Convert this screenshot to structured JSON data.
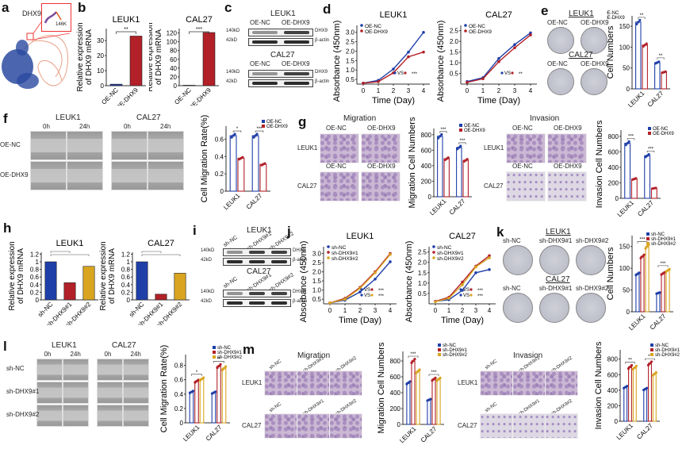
{
  "panels": {
    "a": {
      "label": "a",
      "title": "DHX9",
      "site_label": "146K"
    },
    "b": {
      "label": "b"
    },
    "c": {
      "label": "c",
      "blots": [
        {
          "cell": "LEUK1",
          "lanes": [
            "OE-NC",
            "OE-DHX9"
          ],
          "markers": [
            "140kD",
            "42kD"
          ],
          "proteins": [
            "DHX9",
            "β-actin"
          ]
        },
        {
          "cell": "CAL27",
          "lanes": [
            "OE-NC",
            "OE-DHX9"
          ],
          "markers": [
            "140kD",
            "42kD"
          ],
          "proteins": [
            "DHX9",
            "β-actin"
          ]
        }
      ]
    },
    "d": {
      "label": "d"
    },
    "e": {
      "label": "e",
      "dish_groups": [
        {
          "cell": "LEUK1",
          "lanes": [
            "OE-NC",
            "OE-DHX9"
          ]
        },
        {
          "cell": "CAL27",
          "lanes": [
            "OE-NC",
            "OE-DHX9"
          ]
        }
      ]
    },
    "f": {
      "label": "f",
      "cells": [
        "LEUK1",
        "CAL27"
      ],
      "times": [
        "0h",
        "24h"
      ],
      "rows": [
        "OE-NC",
        "OE-DHX9"
      ]
    },
    "g": {
      "label": "g",
      "sections": [
        {
          "title": "Migration",
          "rows": [
            "LEUK1",
            "CAL27"
          ],
          "cols": [
            "OE-NC",
            "OE-DHX9"
          ]
        },
        {
          "title": "Invasion",
          "rows": [
            "LEUK1",
            "CAL27"
          ],
          "cols": [
            "OE-NC",
            "OE-DHX9"
          ]
        }
      ]
    },
    "h": {
      "label": "h"
    },
    "i": {
      "label": "i",
      "blots": [
        {
          "cell": "LEUK1",
          "lanes": [
            "sh-NC",
            "sh-DHX9#1",
            "sh-DHX9#2"
          ],
          "markers": [
            "140kD",
            "42kD"
          ],
          "proteins": [
            "DHX9",
            "β-actin"
          ]
        },
        {
          "cell": "CAL27",
          "lanes": [
            "sh-NC",
            "sh-DHX9#1",
            "sh-DHX9#2"
          ],
          "markers": [
            "140kD",
            "42kD"
          ],
          "proteins": [
            "DHX9",
            "β-actin"
          ]
        }
      ]
    },
    "j": {
      "label": "j"
    },
    "k": {
      "label": "k",
      "dish_groups": [
        {
          "cell": "LEUK1",
          "lanes": [
            "sh-NC",
            "sh-DHX9#1",
            "sh-DHX9#2"
          ]
        },
        {
          "cell": "CAL27",
          "lanes": [
            "sh-NC",
            "sh-DHX9#1",
            "sh-DHX9#2"
          ]
        }
      ]
    },
    "l": {
      "label": "l",
      "cells": [
        "LEUK1",
        "CAL27"
      ],
      "times": [
        "0h",
        "24h"
      ],
      "rows": [
        "sh-NC",
        "sh-DHX9#1",
        "sh-DHX9#2"
      ]
    },
    "m": {
      "label": "m",
      "sections": [
        {
          "title": "Migration",
          "rows": [
            "LEUK1",
            "CAL27"
          ],
          "cols": [
            "sh-NC",
            "sh-DHX9#1",
            "sh-DHX9#2"
          ]
        },
        {
          "title": "Invasion",
          "rows": [
            "LEUK1",
            "CAL27"
          ],
          "cols": [
            "sh-NC",
            "sh-DHX9#1",
            "sh-DHX9#2"
          ]
        }
      ]
    }
  },
  "colors": {
    "nc": "#1f3fa8",
    "oe": "#b22028",
    "sh1": "#b22028",
    "sh2": "#d9a520"
  },
  "chart_data": [
    {
      "id": "b1",
      "type": "bar",
      "title": "LEUK1",
      "ylabel": "Relative expression of DHX9 mRNA",
      "categories": [
        "OE-NC",
        "OE-DHX9"
      ],
      "values": [
        1,
        33
      ],
      "ylim": [
        0,
        38
      ],
      "yticks": [
        0,
        10,
        20,
        30
      ],
      "sig": "**"
    },
    {
      "id": "b2",
      "type": "bar",
      "title": "CAL27",
      "ylabel": "Relative expression of DHX9 mRNA",
      "categories": [
        "OE-NC",
        "OE-DHX9"
      ],
      "values": [
        1,
        121
      ],
      "ylim": [
        0,
        130
      ],
      "yticks": [
        0,
        20,
        40,
        60,
        80,
        100,
        120
      ],
      "sig": "***"
    },
    {
      "id": "d1",
      "type": "line",
      "title": "LEUK1",
      "xlabel": "Time (Day)",
      "ylabel": "Absorbance (450nm)",
      "x": [
        0,
        1,
        2,
        3,
        4
      ],
      "ylim": [
        0.25,
        3.2
      ],
      "yticks": [
        0.5,
        1.0,
        1.5,
        2.0,
        2.5,
        3.0
      ],
      "series": [
        {
          "name": "OE-NC",
          "values": [
            0.3,
            0.45,
            1.05,
            1.95,
            3.0
          ]
        },
        {
          "name": "OE-DHX9",
          "values": [
            0.3,
            0.38,
            0.85,
            1.7,
            1.95
          ]
        }
      ],
      "annotation": "VS ***"
    },
    {
      "id": "d2",
      "type": "line",
      "title": "CAL27",
      "xlabel": "Time (Day)",
      "ylabel": "Absorbance (450nm)",
      "x": [
        0,
        1,
        2,
        3,
        4
      ],
      "ylim": [
        0.0,
        2.6
      ],
      "yticks": [
        0.5,
        1.0,
        1.5,
        2.0,
        2.5
      ],
      "series": [
        {
          "name": "OE-NC",
          "values": [
            0.12,
            0.3,
            1.2,
            1.85,
            2.4
          ]
        },
        {
          "name": "OE-DHX9",
          "values": [
            0.08,
            0.25,
            1.05,
            1.7,
            2.3
          ]
        }
      ],
      "annotation": "VS **"
    },
    {
      "id": "e",
      "type": "bar",
      "ylabel": "Cell Numbers",
      "categories": [
        "LEUK1",
        "CAL27"
      ],
      "ylim": [
        0,
        175
      ],
      "yticks": [
        0,
        50,
        100,
        150
      ],
      "series": [
        {
          "name": "OE-NC",
          "values": [
            160,
            63
          ]
        },
        {
          "name": "OE-DHX9",
          "values": [
            105,
            40
          ]
        }
      ],
      "sig": [
        "**",
        "**"
      ]
    },
    {
      "id": "f",
      "type": "bar",
      "ylabel": "Cell Migration Rate(%)",
      "categories": [
        "LEUK1",
        "CAL27"
      ],
      "ylim": [
        0,
        0.75
      ],
      "yticks": [
        0.0,
        0.2,
        0.4,
        0.6
      ],
      "series": [
        {
          "name": "OE-NC",
          "values": [
            0.64,
            0.64
          ]
        },
        {
          "name": "OE-DHX9",
          "values": [
            0.38,
            0.31
          ]
        }
      ],
      "sig": [
        "*",
        "***"
      ]
    },
    {
      "id": "g1",
      "type": "bar",
      "ylabel": "Migration Cell Numbers",
      "categories": [
        "LEUK1",
        "CAL27"
      ],
      "ylim": [
        0,
        880
      ],
      "yticks": [
        0,
        200,
        400,
        600,
        800
      ],
      "series": [
        {
          "name": "OE-NC",
          "values": [
            780,
            635
          ]
        },
        {
          "name": "OE-DHX9",
          "values": [
            490,
            470
          ]
        }
      ],
      "sig": [
        "***",
        "***"
      ]
    },
    {
      "id": "g2",
      "type": "bar",
      "ylabel": "Invasion Cell Numbers",
      "categories": [
        "LEUK1",
        "CAL27"
      ],
      "ylim": [
        0,
        880
      ],
      "yticks": [
        0,
        200,
        400,
        600,
        800
      ],
      "series": [
        {
          "name": "OE-NC",
          "values": [
            710,
            550
          ]
        },
        {
          "name": "OE-DHX9",
          "values": [
            250,
            130
          ]
        }
      ],
      "sig": [
        "***",
        "***"
      ]
    },
    {
      "id": "h1",
      "type": "bar",
      "title": "LEUK1",
      "ylabel": "Relative expression of DHX9 mRNA",
      "categories": [
        "sh-NC",
        "sh-DHX9#1",
        "sh-DHX9#2"
      ],
      "values": [
        1.0,
        0.45,
        0.88
      ],
      "ylim": [
        0,
        1.25
      ],
      "yticks": [
        0.0,
        0.2,
        0.4,
        0.6,
        0.8,
        1.0,
        1.2
      ]
    },
    {
      "id": "h2",
      "type": "bar",
      "title": "CAL27",
      "ylabel": "Relative expression of DHX9 mRNA",
      "categories": [
        "sh-NC",
        "sh-DHX9#1",
        "sh-DHX9#2"
      ],
      "values": [
        1.0,
        0.15,
        0.7
      ],
      "ylim": [
        0,
        1.25
      ],
      "yticks": [
        0.0,
        0.2,
        0.4,
        0.6,
        0.8,
        1.0,
        1.2
      ]
    },
    {
      "id": "j1",
      "type": "line",
      "title": "LEUK1",
      "xlabel": "Time (Day)",
      "ylabel": "Absorbance (450nm)",
      "x": [
        0,
        1,
        2,
        3,
        4
      ],
      "ylim": [
        0.25,
        3.2
      ],
      "yticks": [
        0.5,
        1.0,
        1.5,
        2.0,
        2.5,
        3.0
      ],
      "series": [
        {
          "name": "sh-NC",
          "values": [
            0.3,
            0.45,
            0.9,
            1.6,
            2.55
          ]
        },
        {
          "name": "sh-DHX9#1",
          "values": [
            0.3,
            0.55,
            1.15,
            2.0,
            3.0
          ]
        },
        {
          "name": "sh-DHX9#2",
          "values": [
            0.3,
            0.5,
            1.1,
            1.95,
            2.95
          ]
        }
      ],
      "annotation": "VS ***"
    },
    {
      "id": "j2",
      "type": "line",
      "title": "CAL27",
      "xlabel": "Time (Day)",
      "ylabel": "Absorbance (450nm)",
      "x": [
        0,
        1,
        2,
        3,
        4
      ],
      "ylim": [
        0.0,
        2.6
      ],
      "yticks": [
        0.5,
        1.0,
        1.5,
        2.0,
        2.5
      ],
      "series": [
        {
          "name": "sh-NC",
          "values": [
            0.12,
            0.2,
            0.65,
            1.5,
            1.65
          ]
        },
        {
          "name": "sh-DHX9#1",
          "values": [
            0.12,
            0.32,
            1.05,
            1.82,
            2.32
          ]
        },
        {
          "name": "sh-DHX9#2",
          "values": [
            0.1,
            0.27,
            0.92,
            1.78,
            2.22
          ]
        }
      ],
      "annotation": "VS ***"
    },
    {
      "id": "k",
      "type": "bar",
      "ylabel": "Cell Numbers",
      "categories": [
        "LEUK1",
        "CAL27"
      ],
      "ylim": [
        0,
        175
      ],
      "yticks": [
        0,
        50,
        100,
        150
      ],
      "series": [
        {
          "name": "sh-NC",
          "values": [
            87,
            43
          ]
        },
        {
          "name": "sh-DHX9#1",
          "values": [
            127,
            88
          ]
        },
        {
          "name": "sh-DHX9#2",
          "values": [
            150,
            95
          ]
        }
      ],
      "sig": [
        "***",
        "***"
      ]
    },
    {
      "id": "l",
      "type": "bar",
      "ylabel": "Cell Migration Rate(%)",
      "categories": [
        "LEUK1",
        "CAL27"
      ],
      "ylim": [
        0,
        0.95
      ],
      "yticks": [
        0.0,
        0.2,
        0.4,
        0.6,
        0.8
      ],
      "series": [
        {
          "name": "sh-NC",
          "values": [
            0.43,
            0.42
          ]
        },
        {
          "name": "sh-DHX9#1",
          "values": [
            0.58,
            0.79
          ]
        },
        {
          "name": "sh-DHX9#2",
          "values": [
            0.61,
            0.76
          ]
        }
      ],
      "sig": [
        "*",
        "**"
      ]
    },
    {
      "id": "m1",
      "type": "bar",
      "ylabel": "Migration Cell Numbers",
      "categories": [
        "LEUK1",
        "CAL27"
      ],
      "ylim": [
        0,
        920
      ],
      "yticks": [
        0,
        200,
        400,
        600,
        800
      ],
      "series": [
        {
          "name": "sh-NC",
          "values": [
            525,
            310
          ]
        },
        {
          "name": "sh-DHX9#1",
          "values": [
            800,
            570
          ]
        },
        {
          "name": "sh-DHX9#2",
          "values": [
            670,
            570
          ]
        }
      ],
      "sig": [
        "***",
        "***"
      ]
    },
    {
      "id": "m2",
      "type": "bar",
      "ylabel": "Invasion Cell Numbers",
      "categories": [
        "LEUK1",
        "CAL27"
      ],
      "ylim": [
        0,
        920
      ],
      "yticks": [
        0,
        200,
        400,
        600,
        800
      ],
      "series": [
        {
          "name": "sh-NC",
          "values": [
            440,
            415
          ]
        },
        {
          "name": "sh-DHX9#1",
          "values": [
            700,
            745
          ]
        },
        {
          "name": "sh-DHX9#2",
          "values": [
            690,
            610
          ]
        }
      ],
      "sig": [
        "**",
        "**"
      ]
    }
  ]
}
